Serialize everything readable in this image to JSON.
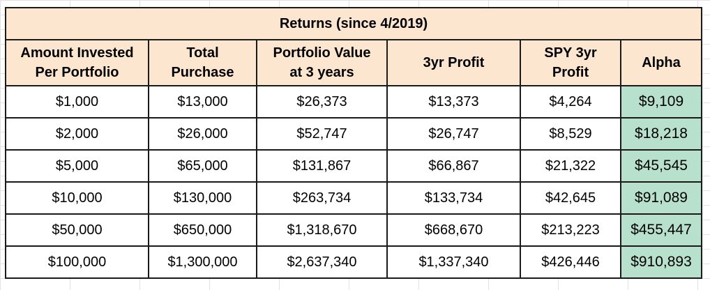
{
  "table": {
    "title": "Returns (since 4/2019)",
    "columns": [
      {
        "line1": "Amount Invested",
        "line2": "Per Portfolio"
      },
      {
        "line1": "Total",
        "line2": "Purchase"
      },
      {
        "line1": "Portfolio Value",
        "line2": "at 3 years"
      },
      {
        "line1": "3yr Profit",
        "line2": ""
      },
      {
        "line1": "SPY 3yr",
        "line2": "Profit"
      },
      {
        "line1": "Alpha",
        "line2": ""
      }
    ],
    "rows": [
      [
        "$1,000",
        "$13,000",
        "$26,373",
        "$13,373",
        "$4,264",
        "$9,109"
      ],
      [
        "$2,000",
        "$26,000",
        "$52,747",
        "$26,747",
        "$8,529",
        "$18,218"
      ],
      [
        "$5,000",
        "$65,000",
        "$131,867",
        "$66,867",
        "$21,322",
        "$45,545"
      ],
      [
        "$10,000",
        "$130,000",
        "$263,734",
        "$133,734",
        "$42,645",
        "$91,089"
      ],
      [
        "$50,000",
        "$650,000",
        "$1,318,670",
        "$668,670",
        "$213,223",
        "$455,447"
      ],
      [
        "$100,000",
        "$1,300,000",
        "$2,637,340",
        "$1,337,340",
        "$426,446",
        "$910,893"
      ]
    ]
  },
  "colors": {
    "header_fill": "#fde6cf",
    "alpha_fill": "#b7e1cd",
    "border": "#1a1a1a"
  }
}
